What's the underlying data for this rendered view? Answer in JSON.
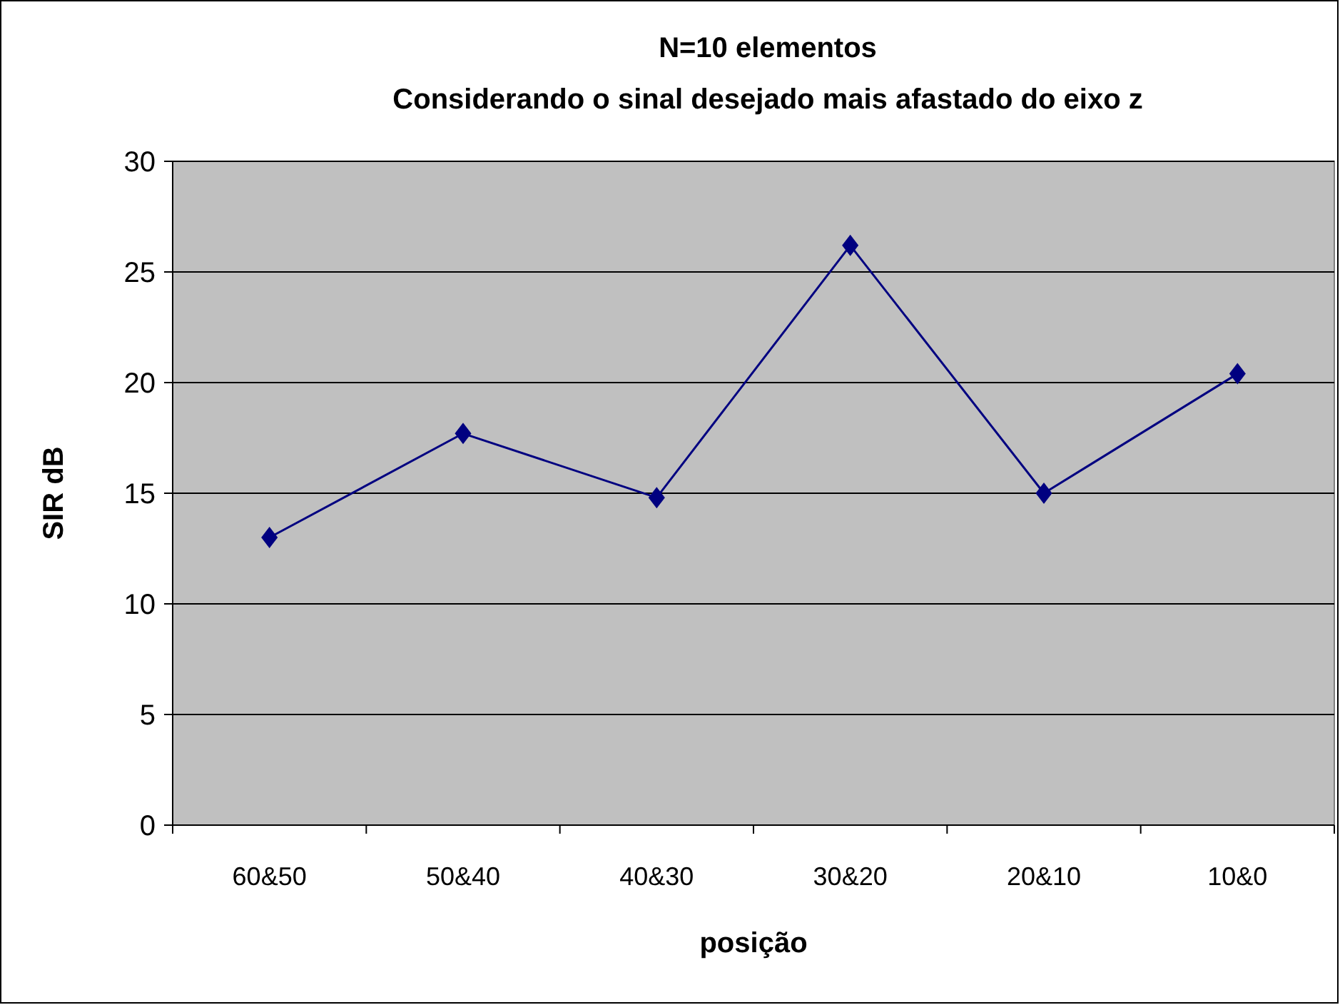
{
  "chart_data": {
    "type": "line",
    "title": "N=10 elementos",
    "subtitle": "Considerando o sinal desejado mais afastado do eixo z",
    "xlabel": "posição",
    "ylabel": "SIR dB",
    "categories": [
      "60&50",
      "50&40",
      "40&30",
      "30&20",
      "20&10",
      "10&0"
    ],
    "series": [
      {
        "color": "#000080",
        "values": [
          13.0,
          17.7,
          14.8,
          26.2,
          15.0,
          20.4
        ]
      }
    ],
    "ylim": [
      0,
      30
    ],
    "yticks": [
      0,
      5,
      10,
      15,
      20,
      25,
      30
    ],
    "grid": "y",
    "marker": "diamond",
    "line_style": "solid"
  }
}
